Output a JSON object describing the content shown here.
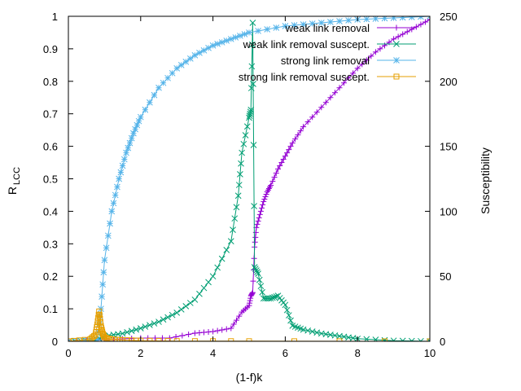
{
  "chart_data": {
    "type": "line",
    "xlabel": "(1-f)k",
    "ylabel": "R",
    "ylabel_subscript": "LCC",
    "y2label": "Susceptibility",
    "xlim": [
      0,
      10
    ],
    "ylim": [
      0,
      1
    ],
    "y2lim": [
      0,
      250
    ],
    "x_ticks": [
      0,
      2,
      4,
      6,
      8,
      10
    ],
    "y_ticks": [
      0,
      0.1,
      0.2,
      0.3,
      0.4,
      0.5,
      0.6,
      0.7,
      0.8,
      0.9,
      1
    ],
    "y2_ticks": [
      0,
      50,
      100,
      150,
      200,
      250
    ],
    "legend_position": "top-right",
    "grid": false,
    "series": [
      {
        "name": "weak link removal",
        "axis": "left",
        "color": "#9400d3",
        "marker": "plus",
        "points": [
          [
            0.0,
            0.0
          ],
          [
            1.0,
            0.005
          ],
          [
            2.0,
            0.01
          ],
          [
            2.8,
            0.01
          ],
          [
            3.5,
            0.025
          ],
          [
            4.0,
            0.03
          ],
          [
            4.5,
            0.04
          ],
          [
            4.8,
            0.09
          ],
          [
            5.0,
            0.11
          ],
          [
            5.05,
            0.14
          ],
          [
            5.1,
            0.15
          ],
          [
            5.15,
            0.29
          ],
          [
            5.2,
            0.35
          ],
          [
            5.3,
            0.39
          ],
          [
            5.4,
            0.43
          ],
          [
            5.5,
            0.46
          ],
          [
            5.6,
            0.48
          ],
          [
            5.8,
            0.53
          ],
          [
            6.0,
            0.57
          ],
          [
            6.2,
            0.61
          ],
          [
            6.5,
            0.66
          ],
          [
            7.0,
            0.72
          ],
          [
            7.5,
            0.78
          ],
          [
            8.0,
            0.84
          ],
          [
            8.5,
            0.89
          ],
          [
            9.0,
            0.93
          ],
          [
            9.5,
            0.96
          ],
          [
            10.0,
            0.99
          ]
        ]
      },
      {
        "name": "weak link removal suscept.",
        "axis": "right",
        "color": "#009e73",
        "marker": "cross",
        "points": [
          [
            0.0,
            0.0
          ],
          [
            0.7,
            0.3
          ],
          [
            1.0,
            4.0
          ],
          [
            1.5,
            6.0
          ],
          [
            2.0,
            10.0
          ],
          [
            2.5,
            15.0
          ],
          [
            3.0,
            22.0
          ],
          [
            3.5,
            32.0
          ],
          [
            4.0,
            50.0
          ],
          [
            4.5,
            77.0
          ],
          [
            4.7,
            112.0
          ],
          [
            4.8,
            145.0
          ],
          [
            5.0,
            172.0
          ],
          [
            5.05,
            178.0
          ],
          [
            5.1,
            245.0
          ],
          [
            5.15,
            57.0
          ],
          [
            5.25,
            52.0
          ],
          [
            5.4,
            33.0
          ],
          [
            5.6,
            33.0
          ],
          [
            5.8,
            35.0
          ],
          [
            6.0,
            28.0
          ],
          [
            6.2,
            12.0
          ],
          [
            6.5,
            9.0
          ],
          [
            7.0,
            6.0
          ],
          [
            7.5,
            4.0
          ],
          [
            8.0,
            2.0
          ],
          [
            9.0,
            0.5
          ],
          [
            10.0,
            0.0
          ]
        ]
      },
      {
        "name": "strong link removal",
        "axis": "left",
        "color": "#56b4e9",
        "marker": "star",
        "points": [
          [
            0.0,
            0.0
          ],
          [
            0.8,
            0.005
          ],
          [
            0.9,
            0.1
          ],
          [
            1.0,
            0.25
          ],
          [
            1.2,
            0.4
          ],
          [
            1.4,
            0.5
          ],
          [
            1.6,
            0.58
          ],
          [
            1.8,
            0.64
          ],
          [
            2.0,
            0.69
          ],
          [
            2.5,
            0.78
          ],
          [
            3.0,
            0.84
          ],
          [
            3.5,
            0.88
          ],
          [
            4.0,
            0.91
          ],
          [
            4.5,
            0.93
          ],
          [
            5.0,
            0.95
          ],
          [
            6.0,
            0.97
          ],
          [
            7.0,
            0.98
          ],
          [
            8.0,
            0.99
          ],
          [
            9.0,
            0.995
          ],
          [
            10.0,
            1.0
          ]
        ]
      },
      {
        "name": "strong link removal suscept.",
        "axis": "right",
        "color": "#e69f00",
        "marker": "square",
        "points": [
          [
            0.0,
            0.0
          ],
          [
            0.6,
            1.5
          ],
          [
            0.75,
            5.0
          ],
          [
            0.8,
            13.0
          ],
          [
            0.85,
            23.0
          ],
          [
            0.9,
            12.0
          ],
          [
            0.95,
            6.0
          ],
          [
            1.0,
            3.0
          ],
          [
            1.2,
            1.5
          ],
          [
            1.5,
            1.0
          ],
          [
            2.0,
            0.5
          ],
          [
            3.0,
            0.2
          ],
          [
            5.0,
            0.1
          ],
          [
            10.0,
            0.0
          ]
        ]
      }
    ]
  }
}
